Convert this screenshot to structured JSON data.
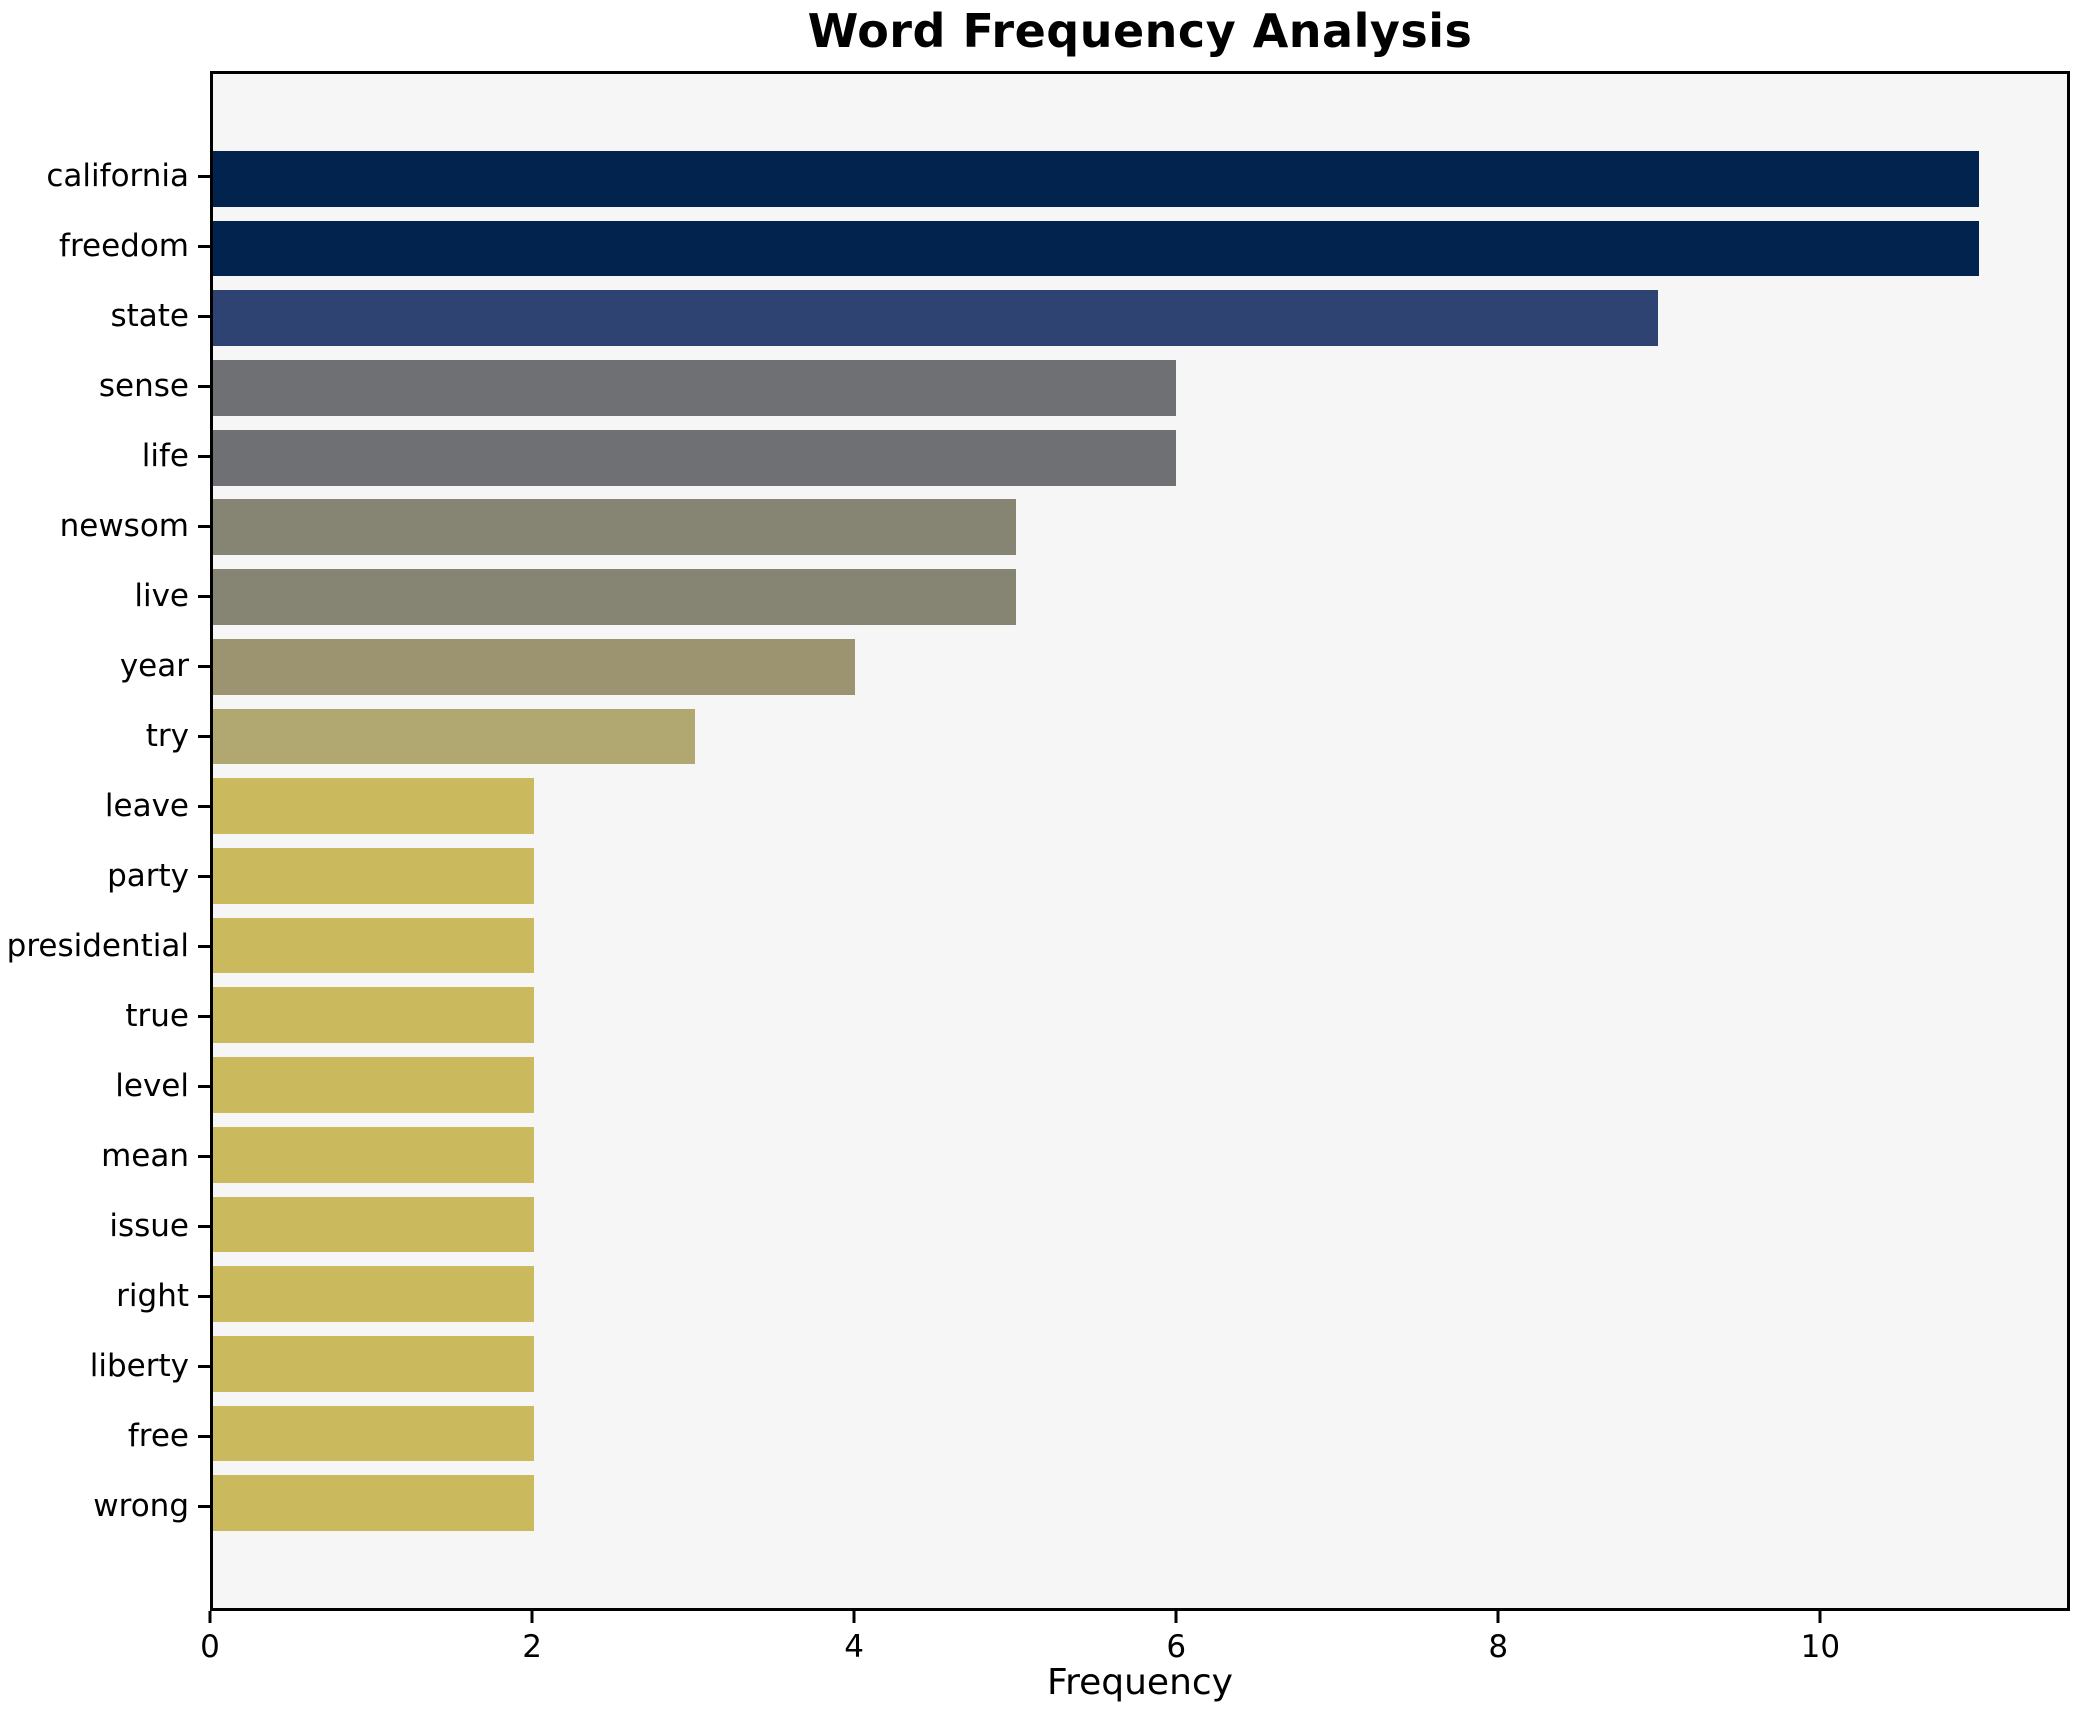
{
  "chart_data": {
    "type": "bar",
    "orientation": "horizontal",
    "title": "Word Frequency Analysis",
    "xlabel": "Frequency",
    "ylabel": "",
    "categories": [
      "california",
      "freedom",
      "state",
      "sense",
      "life",
      "newsom",
      "live",
      "year",
      "try",
      "leave",
      "party",
      "presidential",
      "true",
      "level",
      "mean",
      "issue",
      "right",
      "liberty",
      "free",
      "wrong"
    ],
    "values": [
      11,
      11,
      9,
      6,
      6,
      5,
      5,
      4,
      3,
      2,
      2,
      2,
      2,
      2,
      2,
      2,
      2,
      2,
      2,
      2
    ],
    "bar_colors": [
      "#03234f",
      "#03234f",
      "#2e4371",
      "#6f7073",
      "#6f7073",
      "#868472",
      "#868472",
      "#9c9471",
      "#b1a771",
      "#cbb95d",
      "#cbb95d",
      "#cbb95d",
      "#cbb95d",
      "#cbb95d",
      "#cbb95d",
      "#cbb95d",
      "#cbb95d",
      "#cbb95d",
      "#cbb95d",
      "#cbb95d"
    ],
    "x_ticks": [
      0,
      2,
      4,
      6,
      8,
      10
    ],
    "xlim": [
      0,
      11.55
    ],
    "grid": false,
    "legend": null,
    "bar_height_fraction": 0.8,
    "colors": {
      "figure_background": "#ffffff",
      "axes_background": "#f6f6f7",
      "spine": "#000000",
      "text": "#000000"
    }
  }
}
